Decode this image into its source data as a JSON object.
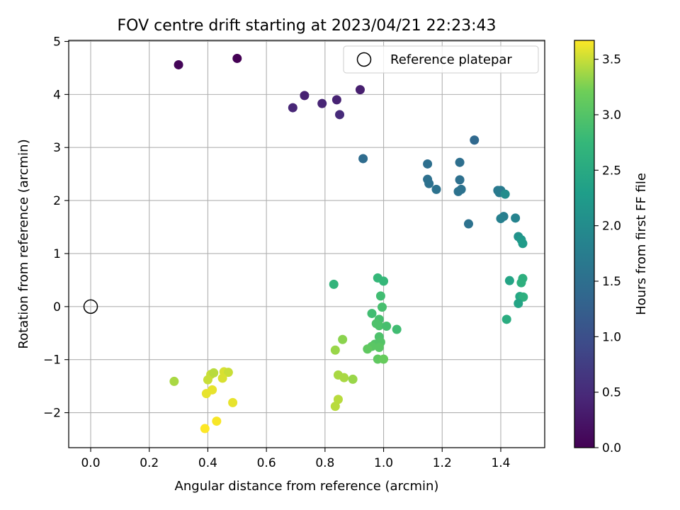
{
  "chart_data": {
    "type": "scatter",
    "title": "FOV centre drift starting at 2023/04/21 22:23:43",
    "xlabel": "Angular distance from reference (arcmin)",
    "ylabel": "Rotation from reference (arcmin)",
    "xlim": [
      -0.075,
      1.55
    ],
    "ylim": [
      -2.66,
      5.02
    ],
    "xticks": [
      "0.0",
      "0.2",
      "0.4",
      "0.6",
      "0.8",
      "1.0",
      "1.2",
      "1.4"
    ],
    "xtick_values": [
      0,
      0.2,
      0.4,
      0.6,
      0.8,
      1.0,
      1.2,
      1.4
    ],
    "yticks": [
      "5",
      "4",
      "3",
      "2",
      "1",
      "0",
      "−1",
      "−2"
    ],
    "ytick_values": [
      5,
      4,
      3,
      2,
      1,
      0,
      -1,
      -2
    ],
    "grid": true,
    "legend": {
      "label": "Reference platepar",
      "placement": "top-right"
    },
    "reference_point": {
      "x": 0,
      "y": 0
    },
    "colorbar": {
      "label": "Hours from first FF file",
      "range": [
        0,
        3.67
      ],
      "ticks": [
        "0.0",
        "0.5",
        "1.0",
        "1.5",
        "2.0",
        "2.5",
        "3.0",
        "3.5"
      ],
      "tick_values": [
        0,
        0.5,
        1.0,
        1.5,
        2.0,
        2.5,
        3.0,
        3.5
      ],
      "colormap": "viridis"
    },
    "points": [
      {
        "x": 0.5,
        "y": 4.68,
        "h": 0.0
      },
      {
        "x": 0.3,
        "y": 4.56,
        "h": 0.05
      },
      {
        "x": 0.92,
        "y": 4.09,
        "h": 0.35
      },
      {
        "x": 0.73,
        "y": 3.98,
        "h": 0.38
      },
      {
        "x": 0.84,
        "y": 3.9,
        "h": 0.4
      },
      {
        "x": 0.79,
        "y": 3.83,
        "h": 0.42
      },
      {
        "x": 0.69,
        "y": 3.75,
        "h": 0.45
      },
      {
        "x": 0.85,
        "y": 3.62,
        "h": 0.5
      },
      {
        "x": 1.31,
        "y": 3.14,
        "h": 1.4
      },
      {
        "x": 0.93,
        "y": 2.79,
        "h": 1.45
      },
      {
        "x": 1.26,
        "y": 2.72,
        "h": 1.5
      },
      {
        "x": 1.15,
        "y": 2.69,
        "h": 1.5
      },
      {
        "x": 1.15,
        "y": 2.4,
        "h": 1.52
      },
      {
        "x": 1.26,
        "y": 2.39,
        "h": 1.52
      },
      {
        "x": 1.155,
        "y": 2.32,
        "h": 1.53
      },
      {
        "x": 1.18,
        "y": 2.21,
        "h": 1.55
      },
      {
        "x": 1.265,
        "y": 2.21,
        "h": 1.56
      },
      {
        "x": 1.255,
        "y": 2.17,
        "h": 1.56
      },
      {
        "x": 1.39,
        "y": 2.19,
        "h": 1.65
      },
      {
        "x": 1.4,
        "y": 2.19,
        "h": 1.7
      },
      {
        "x": 1.395,
        "y": 2.15,
        "h": 1.72
      },
      {
        "x": 1.415,
        "y": 2.12,
        "h": 2.0
      },
      {
        "x": 1.41,
        "y": 1.7,
        "h": 1.75
      },
      {
        "x": 1.4,
        "y": 1.66,
        "h": 1.8
      },
      {
        "x": 1.45,
        "y": 1.67,
        "h": 1.85
      },
      {
        "x": 1.29,
        "y": 1.56,
        "h": 1.55
      },
      {
        "x": 1.46,
        "y": 1.32,
        "h": 2.1
      },
      {
        "x": 1.47,
        "y": 1.26,
        "h": 2.2
      },
      {
        "x": 1.475,
        "y": 1.19,
        "h": 2.25
      },
      {
        "x": 1.475,
        "y": 0.53,
        "h": 2.6
      },
      {
        "x": 1.43,
        "y": 0.49,
        "h": 2.4
      },
      {
        "x": 1.47,
        "y": 0.45,
        "h": 2.6
      },
      {
        "x": 1.465,
        "y": 0.19,
        "h": 2.45
      },
      {
        "x": 1.477,
        "y": 0.18,
        "h": 2.6
      },
      {
        "x": 1.46,
        "y": 0.06,
        "h": 2.4
      },
      {
        "x": 1.42,
        "y": -0.24,
        "h": 2.55
      },
      {
        "x": 0.83,
        "y": 0.42,
        "h": 2.7
      },
      {
        "x": 0.98,
        "y": 0.54,
        "h": 2.75
      },
      {
        "x": 1.0,
        "y": 0.48,
        "h": 2.75
      },
      {
        "x": 0.99,
        "y": 0.2,
        "h": 2.85
      },
      {
        "x": 0.995,
        "y": -0.01,
        "h": 2.9
      },
      {
        "x": 0.96,
        "y": -0.13,
        "h": 2.85
      },
      {
        "x": 0.985,
        "y": -0.24,
        "h": 2.9
      },
      {
        "x": 0.975,
        "y": -0.32,
        "h": 2.95
      },
      {
        "x": 0.985,
        "y": -0.36,
        "h": 2.95
      },
      {
        "x": 1.01,
        "y": -0.37,
        "h": 2.9
      },
      {
        "x": 1.045,
        "y": -0.43,
        "h": 2.85
      },
      {
        "x": 0.985,
        "y": -0.57,
        "h": 2.95
      },
      {
        "x": 0.99,
        "y": -0.67,
        "h": 3.0
      },
      {
        "x": 0.97,
        "y": -0.71,
        "h": 3.0
      },
      {
        "x": 0.96,
        "y": -0.75,
        "h": 3.05
      },
      {
        "x": 0.985,
        "y": -0.77,
        "h": 3.05
      },
      {
        "x": 0.945,
        "y": -0.8,
        "h": 3.1
      },
      {
        "x": 0.98,
        "y": -0.99,
        "h": 3.1
      },
      {
        "x": 1.0,
        "y": -0.99,
        "h": 3.15
      },
      {
        "x": 0.86,
        "y": -0.62,
        "h": 3.3
      },
      {
        "x": 0.835,
        "y": -0.82,
        "h": 3.35
      },
      {
        "x": 0.845,
        "y": -1.29,
        "h": 3.4
      },
      {
        "x": 0.865,
        "y": -1.34,
        "h": 3.4
      },
      {
        "x": 0.895,
        "y": -1.37,
        "h": 3.35
      },
      {
        "x": 0.845,
        "y": -1.75,
        "h": 3.45
      },
      {
        "x": 0.835,
        "y": -1.88,
        "h": 3.45
      },
      {
        "x": 0.285,
        "y": -1.41,
        "h": 3.4
      },
      {
        "x": 0.41,
        "y": -1.28,
        "h": 3.5
      },
      {
        "x": 0.42,
        "y": -1.25,
        "h": 3.45
      },
      {
        "x": 0.455,
        "y": -1.23,
        "h": 3.55
      },
      {
        "x": 0.47,
        "y": -1.24,
        "h": 3.5
      },
      {
        "x": 0.45,
        "y": -1.35,
        "h": 3.55
      },
      {
        "x": 0.4,
        "y": -1.38,
        "h": 3.5
      },
      {
        "x": 0.415,
        "y": -1.57,
        "h": 3.6
      },
      {
        "x": 0.395,
        "y": -1.64,
        "h": 3.6
      },
      {
        "x": 0.485,
        "y": -1.81,
        "h": 3.6
      },
      {
        "x": 0.43,
        "y": -2.16,
        "h": 3.65
      },
      {
        "x": 0.39,
        "y": -2.3,
        "h": 3.67
      }
    ]
  }
}
